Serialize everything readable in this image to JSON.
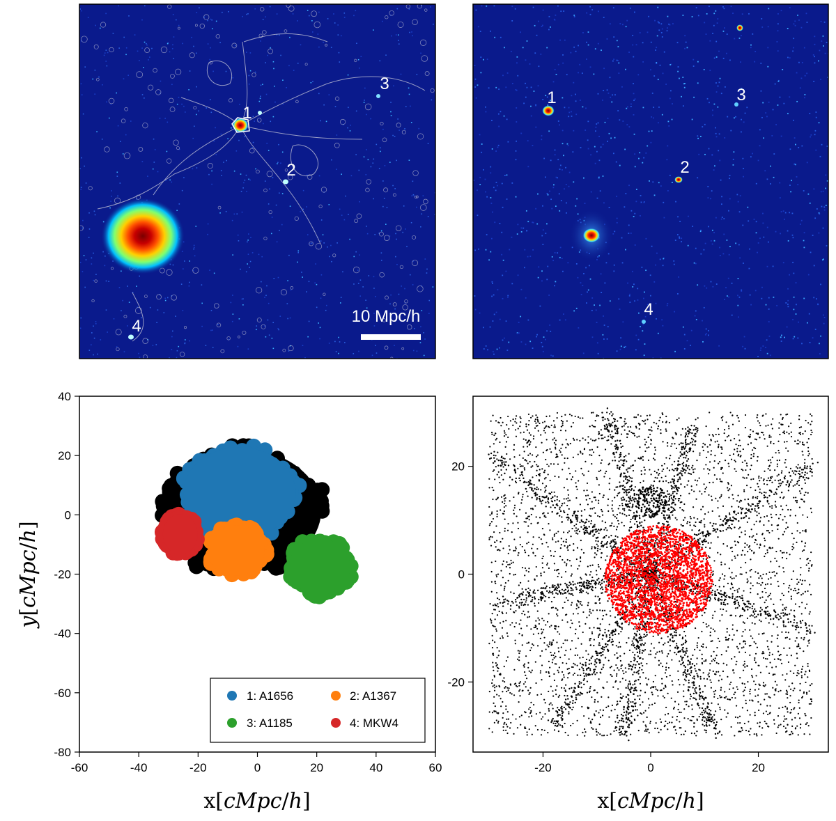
{
  "chart_data": [
    {
      "type": "heatmap",
      "panel": "top-left",
      "description_labels": [
        "1",
        "2",
        "3",
        "4"
      ],
      "scale_bar_label": "10 Mpc/h",
      "colormap": "jet",
      "background": "#0a1a8c"
    },
    {
      "type": "heatmap",
      "panel": "top-right",
      "description_labels": [
        "1",
        "2",
        "3",
        "4"
      ],
      "colormap": "jet",
      "background": "#0a1a8c"
    },
    {
      "type": "scatter",
      "panel": "bottom-left",
      "xlabel": "x[cMpc/h]",
      "ylabel": "y[cMpc/h]",
      "xlim": [
        -60,
        60
      ],
      "ylim": [
        -80,
        40
      ],
      "xticks": [
        "-60",
        "-40",
        "-20",
        "0",
        "20",
        "40",
        "60"
      ],
      "yticks": [
        "40",
        "20",
        "0",
        "-20",
        "-40",
        "-60",
        "-80"
      ],
      "series": [
        {
          "name": "envelope",
          "color": "#000000",
          "center": [
            -5.5,
            1.5
          ],
          "radius": [
            30,
            23
          ]
        },
        {
          "name": "1: A1656",
          "color": "#1f77b4",
          "center": [
            -6,
            7.5
          ],
          "radius": [
            21,
            17
          ]
        },
        {
          "name": "2: A1367",
          "color": "#ff7f0e",
          "center": [
            -7,
            -12
          ],
          "radius": [
            10.5,
            9.5
          ]
        },
        {
          "name": "3: A1185",
          "color": "#2ca02c",
          "center": [
            21,
            -17.5
          ],
          "radius": [
            11.5,
            10.5
          ]
        },
        {
          "name": "4: MKW4",
          "color": "#d62728",
          "center": [
            -26,
            -6.5
          ],
          "radius": [
            6.5,
            7.5
          ]
        }
      ],
      "legend": [
        "1: A1656",
        "2: A1367",
        "3: A1185",
        "4: MKW4"
      ],
      "legend_position": "lower-right"
    },
    {
      "type": "scatter",
      "panel": "bottom-right",
      "xlabel": "x[cMpc/h]",
      "xlim": [
        -33,
        33
      ],
      "ylim": [
        -33,
        33
      ],
      "xticks": [
        "-20",
        "0",
        "20"
      ],
      "yticks": [
        "20",
        "0",
        "-20"
      ],
      "series": [
        {
          "name": "field particles",
          "color": "#000000",
          "range": [
            -30,
            30
          ]
        },
        {
          "name": "selected region",
          "color": "#ff0000",
          "center": [
            1.5,
            -1
          ],
          "radius": [
            10,
            10
          ]
        }
      ]
    }
  ]
}
